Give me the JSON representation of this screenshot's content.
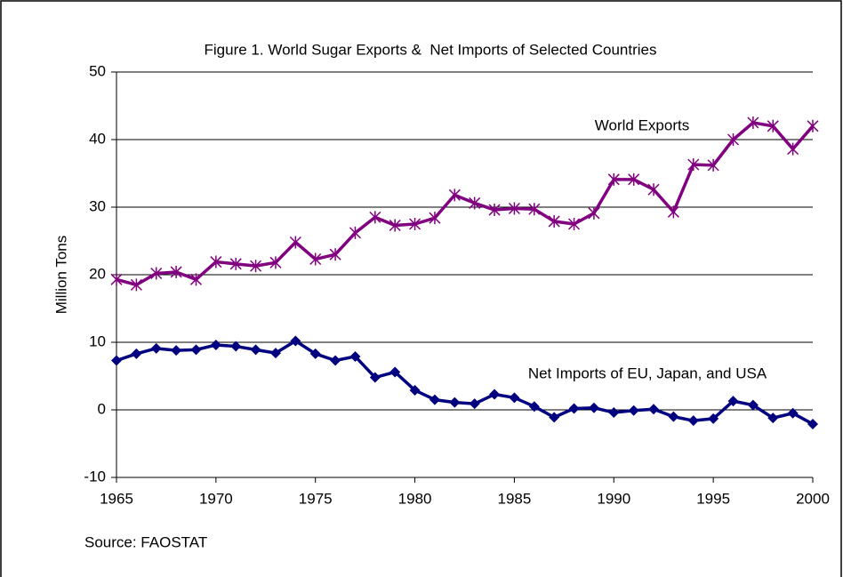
{
  "chart_data": {
    "type": "line",
    "title": "Figure 1. World Sugar Exports &  Net Imports of Selected Countries",
    "y_label": "Million Tons",
    "source": "Source: FAOSTAT",
    "x": [
      1965,
      1966,
      1967,
      1968,
      1969,
      1970,
      1971,
      1972,
      1973,
      1974,
      1975,
      1976,
      1977,
      1978,
      1979,
      1980,
      1981,
      1982,
      1983,
      1984,
      1985,
      1986,
      1987,
      1988,
      1989,
      1990,
      1991,
      1992,
      1993,
      1994,
      1995,
      1996,
      1997,
      1998,
      1999,
      2000
    ],
    "series": [
      {
        "name": "World Exports",
        "color": "#800080",
        "marker": "asterisk",
        "values": [
          19.3,
          18.5,
          20.2,
          20.4,
          19.3,
          21.9,
          21.6,
          21.3,
          21.8,
          24.8,
          22.3,
          23.0,
          26.2,
          28.5,
          27.3,
          27.5,
          28.4,
          31.8,
          30.6,
          29.6,
          29.8,
          29.7,
          27.9,
          27.5,
          29.1,
          34.1,
          34.1,
          32.6,
          29.3,
          36.3,
          36.2,
          40.0,
          42.5,
          42.0,
          38.6,
          42.0
        ]
      },
      {
        "name": "Net Imports of EU, Japan, and USA",
        "color": "#000080",
        "marker": "diamond",
        "values": [
          7.3,
          8.3,
          9.1,
          8.8,
          8.9,
          9.6,
          9.4,
          8.9,
          8.4,
          10.2,
          8.3,
          7.3,
          7.9,
          4.8,
          5.6,
          2.9,
          1.5,
          1.1,
          0.9,
          2.3,
          1.8,
          0.5,
          -1.1,
          0.2,
          0.3,
          -0.4,
          -0.1,
          0.1,
          -1.0,
          -1.6,
          -1.3,
          1.3,
          0.7,
          -1.2,
          -0.5,
          -2.1
        ]
      }
    ],
    "xlim": [
      1965,
      2000
    ],
    "xticks": [
      1965,
      1970,
      1975,
      1980,
      1985,
      1990,
      1995,
      2000
    ],
    "ylim": [
      -10,
      50
    ],
    "yticks": [
      -10,
      0,
      10,
      20,
      30,
      40,
      50
    ],
    "grid": true
  }
}
